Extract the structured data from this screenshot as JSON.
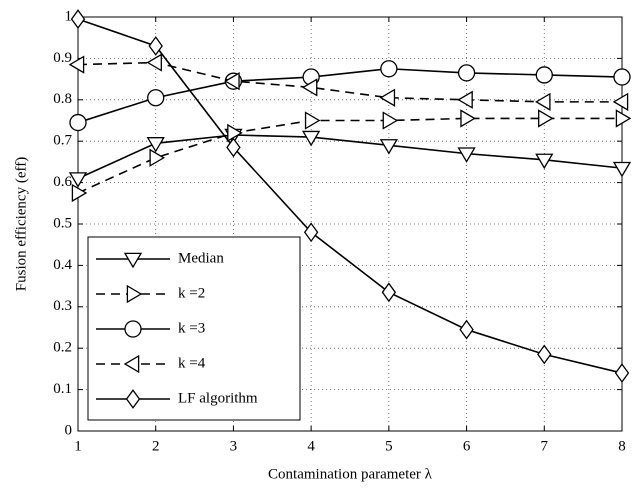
{
  "chart_data": {
    "type": "line",
    "xlabel": "Contamination parameter λ",
    "ylabel": "Fusion efficiency (eff)",
    "x": [
      1,
      2,
      3,
      4,
      5,
      6,
      7,
      8
    ],
    "xlim": [
      1,
      8
    ],
    "xticks": [
      1,
      2,
      3,
      4,
      5,
      6,
      7,
      8
    ],
    "ylim": [
      0,
      1
    ],
    "yticks": [
      0,
      0.1,
      0.2,
      0.3,
      0.4,
      0.5,
      0.6,
      0.7,
      0.8,
      0.9,
      1
    ],
    "grid": true,
    "legend": "lower left",
    "series": [
      {
        "name": "Median",
        "color": "#000000",
        "dash": false,
        "marker": "v",
        "values": [
          0.61,
          0.695,
          0.715,
          0.71,
          0.69,
          0.67,
          0.655,
          0.635
        ]
      },
      {
        "name": "k =2",
        "color": "#000000",
        "dash": true,
        "marker": ">",
        "values": [
          0.575,
          0.66,
          0.72,
          0.75,
          0.75,
          0.755,
          0.755,
          0.755
        ]
      },
      {
        "name": "k =3",
        "color": "#000000",
        "dash": false,
        "marker": "o",
        "values": [
          0.745,
          0.805,
          0.845,
          0.855,
          0.875,
          0.865,
          0.86,
          0.855
        ]
      },
      {
        "name": "k =4",
        "color": "#000000",
        "dash": true,
        "marker": "<",
        "values": [
          0.885,
          0.89,
          0.845,
          0.83,
          0.805,
          0.8,
          0.795,
          0.795
        ]
      },
      {
        "name": "LF algorithm",
        "color": "#000000",
        "dash": false,
        "marker": "D",
        "values": [
          0.995,
          0.93,
          0.685,
          0.48,
          0.335,
          0.245,
          0.185,
          0.14
        ]
      }
    ]
  }
}
